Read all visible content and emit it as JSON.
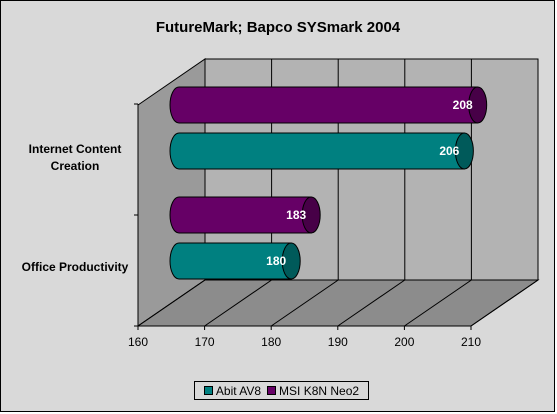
{
  "chart_data": {
    "type": "bar",
    "orientation": "horizontal",
    "style": "3d-cylinder",
    "title": "FutureMark; Bapco SYSmark 2004",
    "categories": [
      "Internet Content Creation",
      "Office Productivity"
    ],
    "category_lines": [
      [
        "Internet Content",
        "Creation"
      ],
      [
        "Office Productivity"
      ]
    ],
    "series": [
      {
        "name": "Abit AV8",
        "values": [
          206,
          180
        ],
        "color": "#008080"
      },
      {
        "name": "MSI K8N Neo2",
        "values": [
          208,
          183
        ],
        "color": "#660066"
      }
    ],
    "xlim": [
      160,
      210
    ],
    "xticks": [
      160,
      170,
      180,
      190,
      200,
      210
    ],
    "xtick_labels": [
      "160",
      "170",
      "180",
      "190",
      "200",
      "210"
    ],
    "grid": true,
    "legend_position": "bottom",
    "background_color": "#d9d9d9",
    "plot_wall_color": "#b3b3b3"
  }
}
